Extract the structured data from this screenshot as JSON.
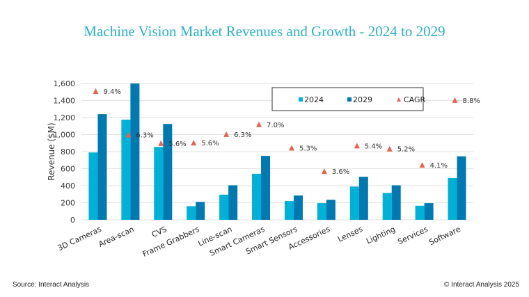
{
  "chart_data": {
    "type": "bar",
    "title": "Machine Vision Market Revenues and Growth - 2024 to 2029",
    "xlabel": "",
    "ylabel": "Revenue ($M)",
    "ylim": [
      0,
      1600
    ],
    "yticks": [
      0,
      200,
      400,
      600,
      800,
      1000,
      1200,
      1400,
      1600
    ],
    "ytick_labels": [
      "0",
      "200",
      "400",
      "600",
      "800",
      "1,000",
      "1,200",
      "1,400",
      "1,600"
    ],
    "grid": true,
    "legend_position": "top-right",
    "categories": [
      "3D Cameras",
      "Area-scan",
      "CVS",
      "Frame Grabbers",
      "Line-scan",
      "Smart Cameras",
      "Smart Sensors",
      "Accessories",
      "Lenses",
      "Lighting",
      "Services",
      "Software"
    ],
    "series": [
      {
        "name": "2024",
        "type": "bar",
        "color": "#00b0d6",
        "values": [
          790,
          1175,
          855,
          160,
          295,
          540,
          220,
          195,
          390,
          315,
          165,
          490
        ]
      },
      {
        "name": "2029",
        "type": "bar",
        "color": "#0078b0",
        "values": [
          1240,
          1600,
          1125,
          210,
          405,
          750,
          285,
          235,
          505,
          405,
          195,
          745
        ]
      },
      {
        "name": "CAGR",
        "type": "marker",
        "marker": "triangle",
        "color": "#e8624f",
        "values": [
          9.4,
          6.3,
          5.6,
          5.6,
          6.3,
          7.0,
          5.3,
          3.6,
          5.4,
          5.2,
          4.1,
          8.8
        ],
        "labels": [
          "9.4%",
          "6.3%",
          "5.6%",
          "5.6%",
          "6.3%",
          "7.0%",
          "5.3%",
          "3.6%",
          "5.4%",
          "5.2%",
          "4.1%",
          "8.8%"
        ],
        "plotted_at_y": [
          1510,
          1000,
          900,
          905,
          1005,
          1120,
          845,
          570,
          870,
          835,
          645,
          1405
        ]
      }
    ]
  },
  "footer": {
    "source": "Source: Interact Analysis",
    "copyright": "© Interact Analysis 2025"
  }
}
